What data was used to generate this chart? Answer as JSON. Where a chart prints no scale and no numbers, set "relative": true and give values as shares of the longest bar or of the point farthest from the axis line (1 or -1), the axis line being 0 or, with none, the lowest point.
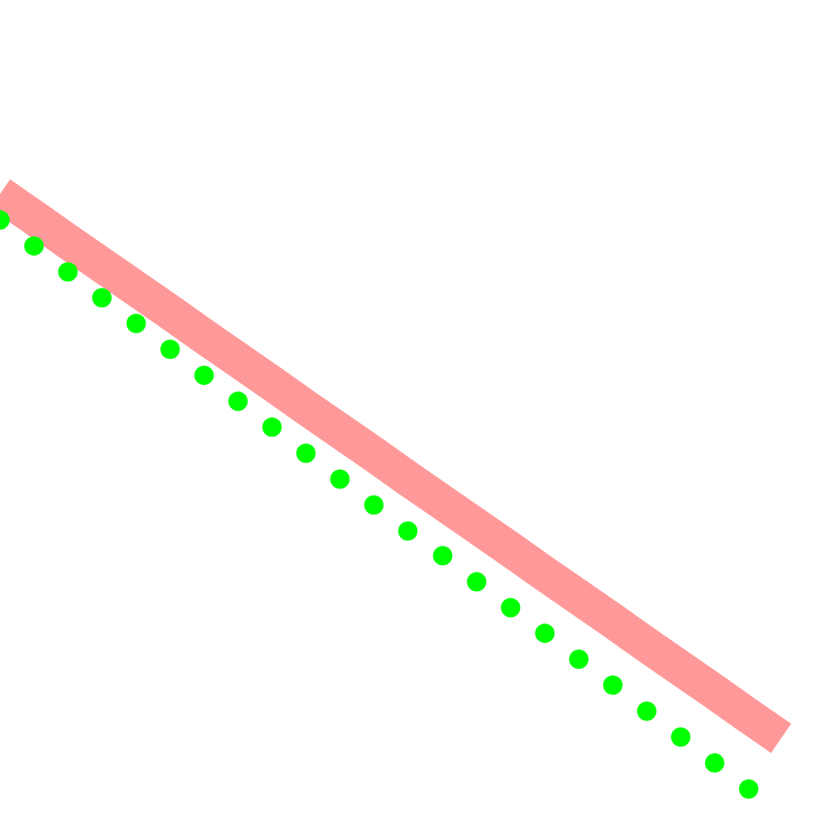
{
  "chart_data": {
    "type": "line",
    "relative": true,
    "categories": [
      null,
      null,
      null,
      null,
      null,
      null,
      null,
      null,
      null,
      null,
      null,
      null,
      null,
      null,
      null,
      null,
      null,
      null,
      null,
      null,
      null,
      null,
      null,
      null
    ],
    "series": [
      {
        "color": "#ff9999",
        "values": [
          1.0,
          0.962,
          0.923,
          0.885,
          0.847,
          0.809,
          0.77,
          0.732,
          0.694,
          0.655,
          0.617,
          0.579,
          0.54,
          0.502,
          0.464,
          0.426,
          0.387,
          0.349,
          0.311,
          0.272,
          0.234,
          0.196,
          0.157,
          0.119
        ],
        "line_style": "solid"
      },
      {
        "color": "#00ff00",
        "values": [
          0.958,
          0.916,
          0.874,
          0.832,
          0.791,
          0.749,
          0.707,
          0.665,
          0.623,
          0.581,
          0.539,
          0.497,
          0.455,
          0.416,
          0.374,
          0.332,
          0.291,
          0.249,
          0.207,
          0.165,
          0.123,
          0.081,
          0.039,
          0.0
        ],
        "line_style": "dotted"
      }
    ]
  }
}
